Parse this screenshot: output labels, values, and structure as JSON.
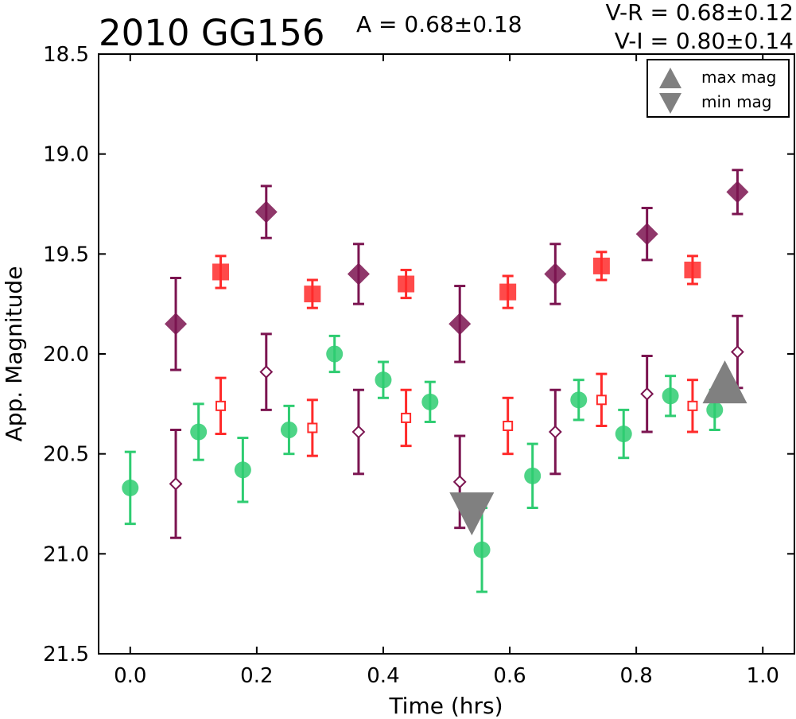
{
  "chart_data": {
    "type": "scatter",
    "title": "2010 GG156",
    "amplitude_text": "A  = 0.68±0.18",
    "color_text_1": "V-R = 0.68±0.12",
    "color_text_2": "V-I  = 0.80±0.14",
    "xlabel": "Time (hrs)",
    "ylabel": "App. Magnitude",
    "xlim": [
      -0.05,
      1.05
    ],
    "ylim": [
      21.5,
      18.5
    ],
    "y_inverted": true,
    "xticks": [
      0.0,
      0.2,
      0.4,
      0.6,
      0.8,
      1.0
    ],
    "xtick_labels": [
      "0.0",
      "0.2",
      "0.4",
      "0.6",
      "0.8",
      "1.0"
    ],
    "yticks": [
      18.5,
      19.0,
      19.5,
      20.0,
      20.5,
      21.0,
      21.5
    ],
    "ytick_labels": [
      "18.5",
      "19.0",
      "19.5",
      "20.0",
      "20.5",
      "21.0",
      "21.5"
    ],
    "grid": false,
    "legend_position": "top-right",
    "legend": [
      {
        "label": "max mag",
        "marker": "triangle-up"
      },
      {
        "label": "min mag",
        "marker": "triangle-down"
      }
    ],
    "colors": {
      "green": "#2ecc71",
      "red": "#ff2a2a",
      "purple": "#7b1450",
      "gray": "#808080"
    },
    "series": [
      {
        "marker": "circle",
        "fill": "filled",
        "color": "#2ecc71",
        "x": [
          0.0,
          0.108,
          0.178,
          0.251,
          0.323,
          0.4,
          0.474,
          0.556,
          0.636,
          0.709,
          0.78,
          0.854,
          0.924
        ],
        "y": [
          20.67,
          20.39,
          20.58,
          20.38,
          20.0,
          20.13,
          20.24,
          20.98,
          20.61,
          20.23,
          20.4,
          20.21,
          20.28
        ],
        "err": [
          0.18,
          0.14,
          0.16,
          0.12,
          0.09,
          0.09,
          0.1,
          0.21,
          0.16,
          0.1,
          0.12,
          0.1,
          0.1
        ]
      },
      {
        "marker": "square",
        "fill": "filled",
        "color": "#ff2a2a",
        "x": [
          0.143,
          0.288,
          0.436,
          0.597,
          0.745,
          0.889
        ],
        "y": [
          19.59,
          19.7,
          19.65,
          19.69,
          19.56,
          19.58
        ],
        "err": [
          0.08,
          0.07,
          0.07,
          0.08,
          0.07,
          0.07
        ]
      },
      {
        "marker": "square",
        "fill": "open",
        "color": "#ff2a2a",
        "x": [
          0.143,
          0.288,
          0.436,
          0.597,
          0.745,
          0.889
        ],
        "y": [
          20.26,
          20.37,
          20.32,
          20.36,
          20.23,
          20.26
        ],
        "err": [
          0.14,
          0.14,
          0.14,
          0.14,
          0.13,
          0.13
        ]
      },
      {
        "marker": "diamond",
        "fill": "filled",
        "color": "#7b1450",
        "x": [
          0.072,
          0.215,
          0.361,
          0.521,
          0.672,
          0.817,
          0.96
        ],
        "y": [
          19.85,
          19.29,
          19.6,
          19.85,
          19.6,
          19.4,
          19.19
        ],
        "err": [
          0.23,
          0.13,
          0.15,
          0.19,
          0.15,
          0.13,
          0.11
        ]
      },
      {
        "marker": "diamond",
        "fill": "open",
        "color": "#7b1450",
        "x": [
          0.072,
          0.215,
          0.361,
          0.521,
          0.672,
          0.817,
          0.96
        ],
        "y": [
          20.65,
          20.09,
          20.39,
          20.64,
          20.39,
          20.2,
          19.99
        ],
        "err": [
          0.27,
          0.19,
          0.21,
          0.23,
          0.21,
          0.19,
          0.18
        ]
      }
    ],
    "markers": [
      {
        "type": "max mag",
        "marker": "triangle-up",
        "x": 0.94,
        "y": 20.14,
        "color": "#808080"
      },
      {
        "type": "min mag",
        "marker": "triangle-down",
        "x": 0.54,
        "y": 20.8,
        "color": "#808080"
      }
    ]
  }
}
